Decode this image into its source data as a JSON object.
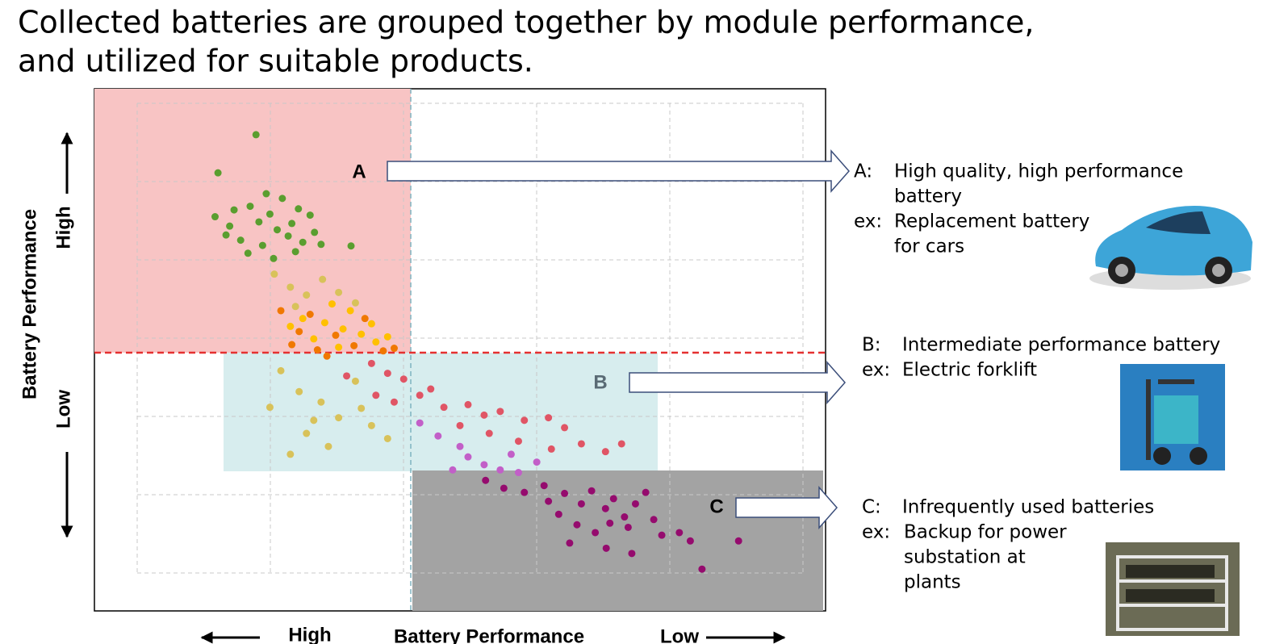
{
  "header": {
    "lines": [
      "Collected batteries are grouped together by module performance,",
      "and utilized for suitable products."
    ]
  },
  "chart_data": {
    "type": "scatter",
    "x_label": "Battery Performance",
    "x_ends": [
      "High",
      "Low"
    ],
    "y_label": "Battery Performance",
    "y_ends": [
      "High",
      "Low"
    ],
    "region_labels": [
      "A",
      "B",
      "C"
    ],
    "xlim": [
      0,
      100
    ],
    "ylim": [
      0,
      100
    ],
    "series": [
      {
        "color": "#5a9e2f",
        "x": [
          22.1,
          16.9,
          23.5,
          25.7,
          19.1,
          21.3,
          27.9,
          16.5,
          18.5,
          22.5,
          25.0,
          27.0,
          29.5,
          30.1,
          20.0,
          23.0,
          26.5,
          28.5,
          31.0,
          35.1,
          21.0,
          24.5,
          27.5,
          18.0,
          24.0
        ],
        "values": [
          91.2,
          83.9,
          79.9,
          79.0,
          76.8,
          77.5,
          77.0,
          75.5,
          73.7,
          74.5,
          73.0,
          74.2,
          75.8,
          72.5,
          71.0,
          70.0,
          71.8,
          70.6,
          70.2,
          69.9,
          68.5,
          67.5,
          68.8,
          72.0,
          76.0
        ]
      },
      {
        "color": "#d8c25a",
        "x": [
          24.6,
          26.8,
          29.0,
          31.2,
          33.4,
          27.5,
          35.7,
          25.5,
          28.0,
          31.0,
          33.4,
          29.0,
          35.7,
          37.9,
          26.8,
          32.0,
          40.1,
          24.0,
          30.0,
          36.5
        ],
        "values": [
          64.5,
          62.0,
          60.5,
          63.5,
          61.0,
          58.3,
          59.0,
          46.0,
          42.0,
          40.0,
          37.0,
          34.0,
          44.0,
          35.5,
          30.0,
          31.5,
          33.0,
          39.0,
          36.5,
          38.8
        ]
      },
      {
        "color": "#ffc000",
        "x": [
          28.5,
          31.5,
          34.0,
          36.5,
          30.0,
          38.5,
          33.4,
          40.1,
          26.8,
          35.0,
          37.9,
          32.5
        ],
        "values": [
          56.0,
          55.2,
          54.0,
          53.0,
          52.1,
          51.5,
          50.5,
          52.5,
          54.5,
          57.5,
          55.0,
          58.8
        ]
      },
      {
        "color": "#f07800",
        "x": [
          25.5,
          28.0,
          30.5,
          33.0,
          35.5,
          37.0,
          39.5,
          27.0,
          31.8,
          41.0,
          29.5
        ],
        "values": [
          57.5,
          53.5,
          50.0,
          52.8,
          50.8,
          56.0,
          49.8,
          51.0,
          48.8,
          50.3,
          56.8
        ]
      },
      {
        "color": "#e05565",
        "x": [
          37.9,
          40.1,
          42.3,
          38.5,
          41.0,
          44.5,
          47.8,
          51.1,
          53.3,
          55.5,
          58.8,
          62.1,
          64.3,
          58.0,
          62.5,
          66.6,
          69.9,
          72.1,
          50.0,
          54.0,
          46.0,
          34.5
        ],
        "values": [
          47.4,
          45.5,
          44.4,
          41.3,
          40.0,
          41.3,
          39.0,
          39.5,
          37.5,
          38.2,
          36.5,
          37.0,
          35.1,
          32.5,
          31.0,
          32.0,
          30.5,
          32.0,
          35.5,
          34.0,
          42.5,
          45.0
        ]
      },
      {
        "color": "#c25fc8",
        "x": [
          44.5,
          47.0,
          50.0,
          51.1,
          53.3,
          55.5,
          58.0,
          60.5,
          49.0,
          57.0
        ],
        "values": [
          36.0,
          33.5,
          31.5,
          29.5,
          28.0,
          27.0,
          26.5,
          28.5,
          27.0,
          30.0
        ]
      },
      {
        "color": "#950b6e",
        "x": [
          53.5,
          56.0,
          58.8,
          61.5,
          62.1,
          64.3,
          66.6,
          68.0,
          69.9,
          71.0,
          72.5,
          74.0,
          75.4,
          63.5,
          66.0,
          68.5,
          70.5,
          73.0,
          76.5,
          77.6,
          80.0,
          81.5,
          65.0,
          70.0,
          83.1,
          88.1,
          73.5
        ],
        "values": [
          25.0,
          23.5,
          22.7,
          24.0,
          21.0,
          22.5,
          20.5,
          23.0,
          19.6,
          21.5,
          18.0,
          20.5,
          22.7,
          18.5,
          16.5,
          15.0,
          16.8,
          16.0,
          17.5,
          14.5,
          15.0,
          13.4,
          13.0,
          12.0,
          8.0,
          13.4,
          11.0
        ]
      }
    ]
  },
  "notes": [
    {
      "key": "A:",
      "lines": [
        "High quality, high performance",
        "battery"
      ],
      "ex": "ex:",
      "ex_lines": [
        "Replacement battery",
        "for cars"
      ]
    },
    {
      "key": "B:",
      "lines": [
        "Intermediate performance battery"
      ],
      "ex": "ex:",
      "ex_lines": [
        "Electric forklift"
      ]
    },
    {
      "key": "C:",
      "lines": [
        "Infrequently used batteries"
      ],
      "ex": "ex:",
      "ex_lines": [
        "Backup for power",
        "substation at",
        "plants"
      ]
    }
  ]
}
